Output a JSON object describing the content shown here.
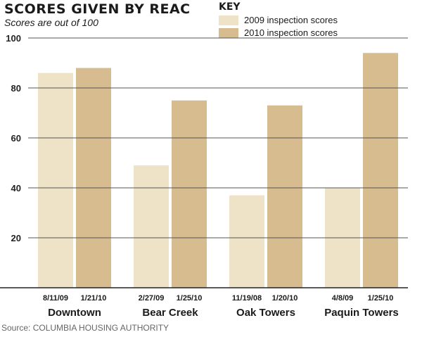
{
  "header": {
    "title": "SCORES GIVEN BY REAC",
    "subtitle": "Scores are out of 100"
  },
  "legend": {
    "title": "KEY",
    "items": [
      {
        "label": "2009 inspection scores",
        "color": "#efe3c7"
      },
      {
        "label": "2010 inspection scores",
        "color": "#d6bc8e"
      }
    ]
  },
  "source": "Source: COLUMBIA HOUSING AUTHORITY",
  "chart_data": {
    "type": "bar",
    "title": "SCORES GIVEN BY REAC",
    "subtitle": "Scores are out of 100",
    "xlabel": "",
    "ylabel": "",
    "ylim": [
      0,
      100
    ],
    "yticks": [
      20,
      40,
      60,
      80,
      100
    ],
    "grid": true,
    "legend_position": "top-right",
    "categories": [
      "Downtown",
      "Bear Creek",
      "Oak Towers",
      "Paquin Towers"
    ],
    "series": [
      {
        "name": "2009 inspection scores",
        "color": "#efe3c7",
        "values": [
          86,
          49,
          37,
          40
        ],
        "dates": [
          "8/11/09",
          "2/27/09",
          "11/19/08",
          "4/8/09"
        ]
      },
      {
        "name": "2010 inspection scores",
        "color": "#d6bc8e",
        "values": [
          88,
          75,
          73,
          94
        ],
        "dates": [
          "1/21/10",
          "1/25/10",
          "1/20/10",
          "1/25/10"
        ]
      }
    ]
  }
}
